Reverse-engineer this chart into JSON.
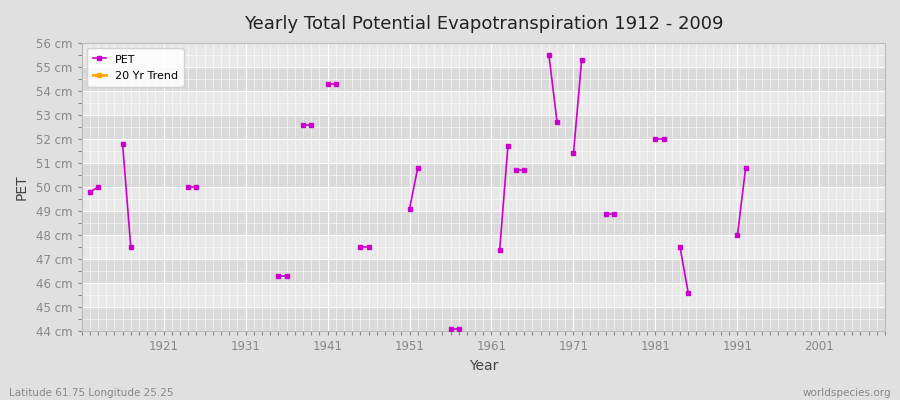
{
  "title": "Yearly Total Potential Evapotranspiration 1912 - 2009",
  "xlabel": "Year",
  "ylabel": "PET",
  "footnote_left": "Latitude 61.75 Longitude 25.25",
  "footnote_right": "worldspecies.org",
  "legend_pet": "PET",
  "legend_trend": "20 Yr Trend",
  "pet_color": "#cc00cc",
  "trend_color": "#ffa500",
  "bg_color": "#e0e0e0",
  "plot_bg_color": "#e8e8e8",
  "grid_color": "#ffffff",
  "stripe_color1": "#e0e0e0",
  "stripe_color2": "#d0d0d0",
  "ylim": [
    44,
    56
  ],
  "ytick_values": [
    44,
    45,
    46,
    47,
    48,
    49,
    50,
    51,
    52,
    53,
    54,
    55,
    56
  ],
  "xlim": [
    1911,
    2009
  ],
  "xtick_values": [
    1921,
    1931,
    1941,
    1951,
    1961,
    1971,
    1981,
    1991,
    2001
  ],
  "segments": [
    {
      "years": [
        1912,
        1913
      ],
      "values": [
        49.8,
        50.0
      ]
    },
    {
      "years": [
        1916,
        1917
      ],
      "values": [
        51.8,
        47.5
      ]
    },
    {
      "years": [
        1924,
        1925
      ],
      "values": [
        50.0,
        50.0
      ]
    },
    {
      "years": [
        1935,
        1936
      ],
      "values": [
        46.3,
        46.3
      ]
    },
    {
      "years": [
        1938,
        1939
      ],
      "values": [
        52.6,
        52.6
      ]
    },
    {
      "years": [
        1941,
        1942
      ],
      "values": [
        54.3,
        54.3
      ]
    },
    {
      "years": [
        1945,
        1946
      ],
      "values": [
        47.5,
        47.5
      ]
    },
    {
      "years": [
        1951,
        1952
      ],
      "values": [
        49.1,
        50.8
      ]
    },
    {
      "years": [
        1956,
        1957
      ],
      "values": [
        44.1,
        44.1
      ]
    },
    {
      "years": [
        1962,
        1963
      ],
      "values": [
        47.4,
        51.7
      ]
    },
    {
      "years": [
        1964,
        1965
      ],
      "values": [
        50.7,
        50.7
      ]
    },
    {
      "years": [
        1968,
        1969
      ],
      "values": [
        55.5,
        52.7
      ]
    },
    {
      "years": [
        1971,
        1972
      ],
      "values": [
        51.4,
        55.3
      ]
    },
    {
      "years": [
        1975,
        1976
      ],
      "values": [
        48.9,
        48.9
      ]
    },
    {
      "years": [
        1981,
        1982
      ],
      "values": [
        52.0,
        52.0
      ]
    },
    {
      "years": [
        1984,
        1985
      ],
      "values": [
        47.5,
        45.6
      ]
    },
    {
      "years": [
        1991,
        1992
      ],
      "values": [
        48.0,
        50.8
      ]
    }
  ],
  "isolated_points": [
    {
      "year": 1912,
      "value": 49.8
    },
    {
      "year": 1916,
      "value": 51.8
    },
    {
      "year": 1917,
      "value": 47.5
    },
    {
      "year": 1924,
      "value": 50.0
    },
    {
      "year": 1935,
      "value": 46.3
    },
    {
      "year": 1938,
      "value": 52.6
    },
    {
      "year": 1941,
      "value": 54.3
    },
    {
      "year": 1945,
      "value": 47.5
    },
    {
      "year": 1951,
      "value": 49.1
    },
    {
      "year": 1952,
      "value": 50.8
    },
    {
      "year": 1956,
      "value": 44.1
    },
    {
      "year": 1962,
      "value": 47.4
    },
    {
      "year": 1963,
      "value": 51.7
    },
    {
      "year": 1964,
      "value": 50.7
    },
    {
      "year": 1968,
      "value": 55.5
    },
    {
      "year": 1969,
      "value": 52.7
    },
    {
      "year": 1971,
      "value": 51.4
    },
    {
      "year": 1972,
      "value": 55.3
    },
    {
      "year": 1975,
      "value": 48.9
    },
    {
      "year": 1981,
      "value": 52.0
    },
    {
      "year": 1984,
      "value": 47.5
    },
    {
      "year": 1985,
      "value": 45.6
    },
    {
      "year": 1991,
      "value": 48.0
    },
    {
      "year": 1992,
      "value": 50.8
    }
  ]
}
